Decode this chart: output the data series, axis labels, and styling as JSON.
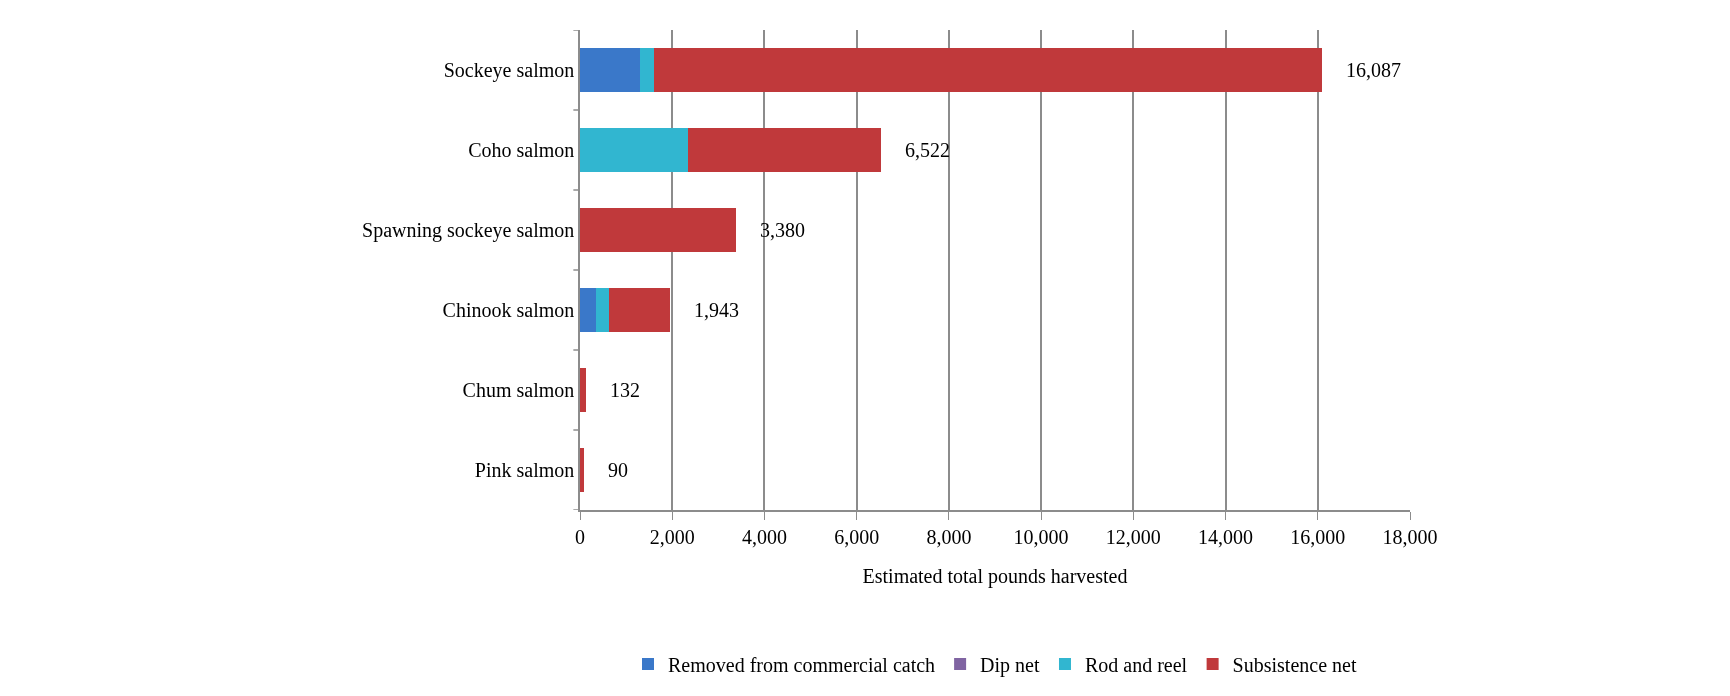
{
  "chart_data": {
    "type": "bar",
    "orientation": "horizontal",
    "stacked": true,
    "xlabel": "Estimated total pounds harvested",
    "categories": [
      "Sockeye salmon",
      "Coho salmon",
      "Spawning sockeye salmon",
      "Chinook salmon",
      "Chum salmon",
      "Pink salmon"
    ],
    "series": [
      {
        "name": "Removed from commercial catch",
        "color": "#3a78c9",
        "values": [
          1300,
          0,
          0,
          350,
          0,
          0
        ]
      },
      {
        "name": "Dip net",
        "color": "#8064a2",
        "values": [
          0,
          0,
          0,
          0,
          0,
          0
        ]
      },
      {
        "name": "Rod and reel",
        "color": "#31b6d0",
        "values": [
          300,
          2350,
          0,
          280,
          0,
          0
        ]
      },
      {
        "name": "Subsistence net",
        "color": "#c0393b",
        "values": [
          14487,
          4172,
          3380,
          1313,
          132,
          90
        ]
      }
    ],
    "totals": [
      "16,087",
      "6,522",
      "3,380",
      "1,943",
      "132",
      "90"
    ],
    "xlim": [
      0,
      18000
    ],
    "xticks": [
      {
        "value": 0,
        "label": "0"
      },
      {
        "value": 2000,
        "label": "2,000"
      },
      {
        "value": 4000,
        "label": "4,000"
      },
      {
        "value": 6000,
        "label": "6,000"
      },
      {
        "value": 8000,
        "label": "8,000"
      },
      {
        "value": 10000,
        "label": "10,000"
      },
      {
        "value": 12000,
        "label": "12,000"
      },
      {
        "value": 14000,
        "label": "14,000"
      },
      {
        "value": 16000,
        "label": "16,000"
      },
      {
        "value": 18000,
        "label": "18,000"
      }
    ],
    "grid": "x",
    "legend": "bottom"
  }
}
